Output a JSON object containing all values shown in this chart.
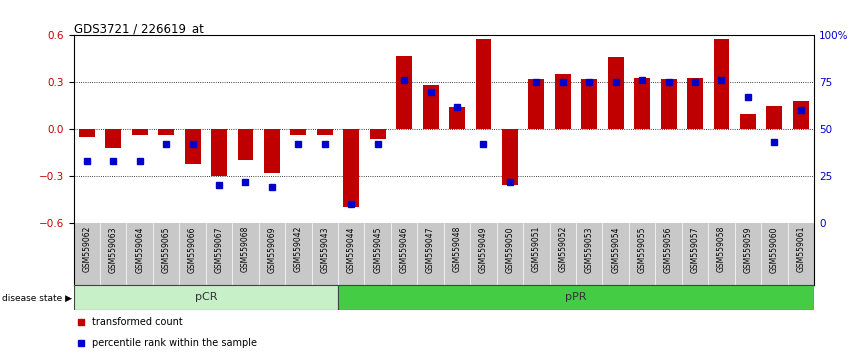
{
  "title": "GDS3721 / 226619_at",
  "samples": [
    "GSM559062",
    "GSM559063",
    "GSM559064",
    "GSM559065",
    "GSM559066",
    "GSM559067",
    "GSM559068",
    "GSM559069",
    "GSM559042",
    "GSM559043",
    "GSM559044",
    "GSM559045",
    "GSM559046",
    "GSM559047",
    "GSM559048",
    "GSM559049",
    "GSM559050",
    "GSM559051",
    "GSM559052",
    "GSM559053",
    "GSM559054",
    "GSM559055",
    "GSM559056",
    "GSM559057",
    "GSM559058",
    "GSM559059",
    "GSM559060",
    "GSM559061"
  ],
  "transformed_count": [
    -0.05,
    -0.12,
    -0.04,
    -0.04,
    -0.22,
    -0.3,
    -0.2,
    -0.28,
    -0.04,
    -0.04,
    -0.5,
    -0.06,
    0.47,
    0.28,
    0.14,
    0.58,
    -0.36,
    0.32,
    0.35,
    0.32,
    0.46,
    0.33,
    0.32,
    0.33,
    0.58,
    0.1,
    0.15,
    0.18
  ],
  "percentile_rank": [
    33,
    33,
    33,
    42,
    42,
    20,
    22,
    19,
    42,
    42,
    10,
    42,
    76,
    70,
    62,
    42,
    22,
    75,
    75,
    75,
    75,
    76,
    75,
    75,
    76,
    67,
    43,
    60
  ],
  "pcr_count": 10,
  "ppr_count": 18,
  "bar_color": "#C00000",
  "dot_color": "#0000CC",
  "pcr_bg_light": "#C8F0C8",
  "pcr_bg": "#90D890",
  "ppr_bg": "#44CC44",
  "ylim": [
    -0.6,
    0.6
  ],
  "yticks": [
    -0.6,
    -0.3,
    0.0,
    0.3,
    0.6
  ],
  "right_yticks": [
    0,
    25,
    50,
    75,
    100
  ],
  "dotted_lines": [
    -0.3,
    0.0,
    0.3
  ],
  "background_color": "#ffffff",
  "label_bg": "#C8C8C8"
}
